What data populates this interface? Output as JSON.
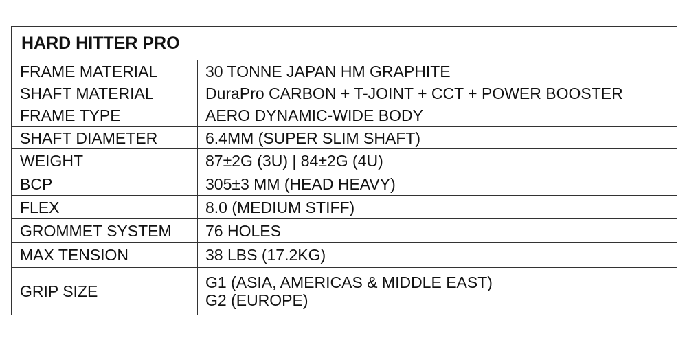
{
  "title": "HARD HITTER PRO",
  "specs": [
    {
      "label": "FRAME MATERIAL",
      "value": "30 TONNE JAPAN HM GRAPHITE"
    },
    {
      "label": "SHAFT MATERIAL",
      "value": "DuraPro CARBON + T-JOINT + CCT + POWER BOOSTER"
    },
    {
      "label": "FRAME TYPE",
      "value": "AERO DYNAMIC-WIDE BODY"
    },
    {
      "label": "SHAFT DIAMETER",
      "value": "6.4MM (SUPER SLIM SHAFT)"
    },
    {
      "label": "WEIGHT",
      "value": "87±2G (3U) | 84±2G (4U)"
    },
    {
      "label": "BCP",
      "value": "305±3 MM (HEAD HEAVY)"
    },
    {
      "label": "FLEX",
      "value": "8.0 (MEDIUM STIFF)"
    },
    {
      "label": "GROMMET SYSTEM",
      "value": "76 HOLES"
    },
    {
      "label": "MAX TENSION",
      "value": "38 LBS (17.2KG)"
    },
    {
      "label": "GRIP SIZE",
      "value": "G1 (ASIA, AMERICAS & MIDDLE EAST)",
      "value2": "G2 (EUROPE)"
    }
  ]
}
